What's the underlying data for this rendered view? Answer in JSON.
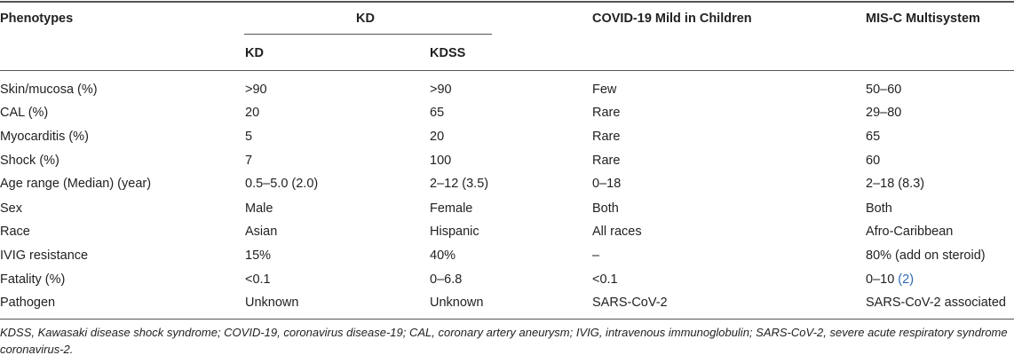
{
  "table": {
    "header": {
      "phenotypes": "Phenotypes",
      "kd_group": "KD",
      "covid": "COVID-19 Mild in Children",
      "misc": "MIS-C Multisystem",
      "kd_sub": "KD",
      "kdss_sub": "KDSS"
    },
    "rows": [
      {
        "phenotype": "Skin/mucosa (%)",
        "kd": ">90",
        "kdss": ">90",
        "covid": "Few",
        "misc": "50–60"
      },
      {
        "phenotype": "CAL (%)",
        "kd": "20",
        "kdss": "65",
        "covid": "Rare",
        "misc": "29–80"
      },
      {
        "phenotype": "Myocarditis (%)",
        "kd": "5",
        "kdss": "20",
        "covid": "Rare",
        "misc": "65"
      },
      {
        "phenotype": "Shock (%)",
        "kd": "7",
        "kdss": "100",
        "covid": "Rare",
        "misc": "60"
      },
      {
        "phenotype": "Age range (Median) (year)",
        "kd": "0.5–5.0 (2.0)",
        "kdss": "2–12 (3.5)",
        "covid": "0–18",
        "misc": "2–18 (8.3)"
      },
      {
        "phenotype": "Sex",
        "kd": "Male",
        "kdss": "Female",
        "covid": "Both",
        "misc": "Both"
      },
      {
        "phenotype": "Race",
        "kd": "Asian",
        "kdss": "Hispanic",
        "covid": "All races",
        "misc": "Afro-Caribbean"
      },
      {
        "phenotype": "IVIG resistance",
        "kd": "15%",
        "kdss": "40%",
        "covid": "–",
        "misc": "80% (add on steroid)"
      },
      {
        "phenotype": "Fatality (%)",
        "kd": "<0.1",
        "kdss": "0–6.8",
        "covid": "<0.1",
        "misc": "0–10 ",
        "misc_ref": "(2)"
      },
      {
        "phenotype": "Pathogen",
        "kd": "Unknown",
        "kdss": "Unknown",
        "covid": "SARS-CoV-2",
        "misc": "SARS-CoV-2 associated"
      }
    ]
  },
  "footnote": "KDSS, Kawasaki disease shock syndrome; COVID-19, coronavirus disease-19; CAL, coronary artery aneurysm; IVIG, intravenous immunoglobulin; SARS-CoV-2, severe acute respiratory syndrome coronavirus-2."
}
